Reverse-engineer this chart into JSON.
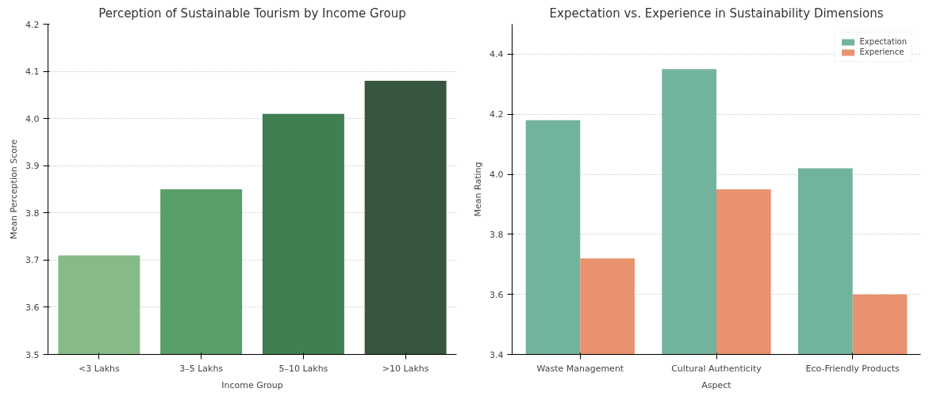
{
  "chart_data": [
    {
      "type": "bar",
      "title": "Perception of Sustainable Tourism by Income Group",
      "xlabel": "Income Group",
      "ylabel": "Mean Perception Score",
      "categories": [
        "<3 Lakhs",
        "3–5 Lakhs",
        "5–10 Lakhs",
        ">10 Lakhs"
      ],
      "values": [
        3.71,
        3.85,
        4.01,
        4.08
      ],
      "colors": [
        "#86bb87",
        "#5a9e69",
        "#3f7f51",
        "#38563f"
      ],
      "ylim": [
        3.5,
        4.2
      ],
      "yticks": [
        3.5,
        3.6,
        3.7,
        3.8,
        3.9,
        {
          "value": 4,
          "label": "4.0"
        },
        4.1,
        4.2
      ],
      "grid": "y"
    },
    {
      "type": "bar",
      "title": "Expectation vs. Experience in Sustainability Dimensions",
      "xlabel": "Aspect",
      "ylabel": "Mean Rating",
      "categories": [
        "Waste Management",
        "Cultural Authenticity",
        "Eco-Friendly Products"
      ],
      "series": [
        {
          "name": "Expectation",
          "color": "#72b39c",
          "values": [
            4.18,
            4.35,
            4.02
          ]
        },
        {
          "name": "Experience",
          "color": "#e8926f",
          "values": [
            3.72,
            3.95,
            3.6
          ]
        }
      ],
      "ylim": [
        3.4,
        4.5
      ],
      "yticks": [
        3.4,
        3.6,
        3.8,
        {
          "value": 4,
          "label": "4.0"
        },
        4.2,
        4.4
      ],
      "grid": "y",
      "legend": "top right"
    }
  ]
}
